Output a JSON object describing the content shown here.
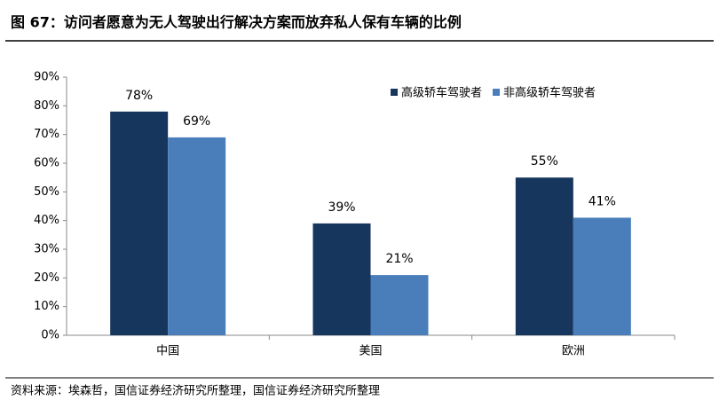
{
  "chart_data": {
    "type": "bar",
    "title": "图 67：访问者愿意为无人驾驶出行解决方案而放弃私人保有车辆的比例",
    "source": "资料来源：埃森哲，国信证券经济研究所整理，国信证券经济研究所整理",
    "categories": [
      "中国",
      "美国",
      "欧洲"
    ],
    "series": [
      {
        "name": "高级轿车驾驶者",
        "color": "#17365d",
        "values": [
          78,
          39,
          55
        ],
        "value_labels": [
          "78%",
          "39%",
          "55%"
        ]
      },
      {
        "name": "非高级轿车驾驶者",
        "color": "#4a7ebb",
        "values": [
          69,
          21,
          41
        ],
        "value_labels": [
          "69%",
          "21%",
          "41%"
        ]
      }
    ],
    "ylim": [
      0,
      90
    ],
    "yticks": [
      {
        "value": 0,
        "label": "0%"
      },
      {
        "value": 10,
        "label": "10%"
      },
      {
        "value": 20,
        "label": "20%"
      },
      {
        "value": 30,
        "label": "30%"
      },
      {
        "value": 40,
        "label": "40%"
      },
      {
        "value": 50,
        "label": "50%"
      },
      {
        "value": 60,
        "label": "60%"
      },
      {
        "value": 70,
        "label": "70%"
      },
      {
        "value": 80,
        "label": "80%"
      },
      {
        "value": 90,
        "label": "90%"
      }
    ],
    "legend": "top-right"
  }
}
